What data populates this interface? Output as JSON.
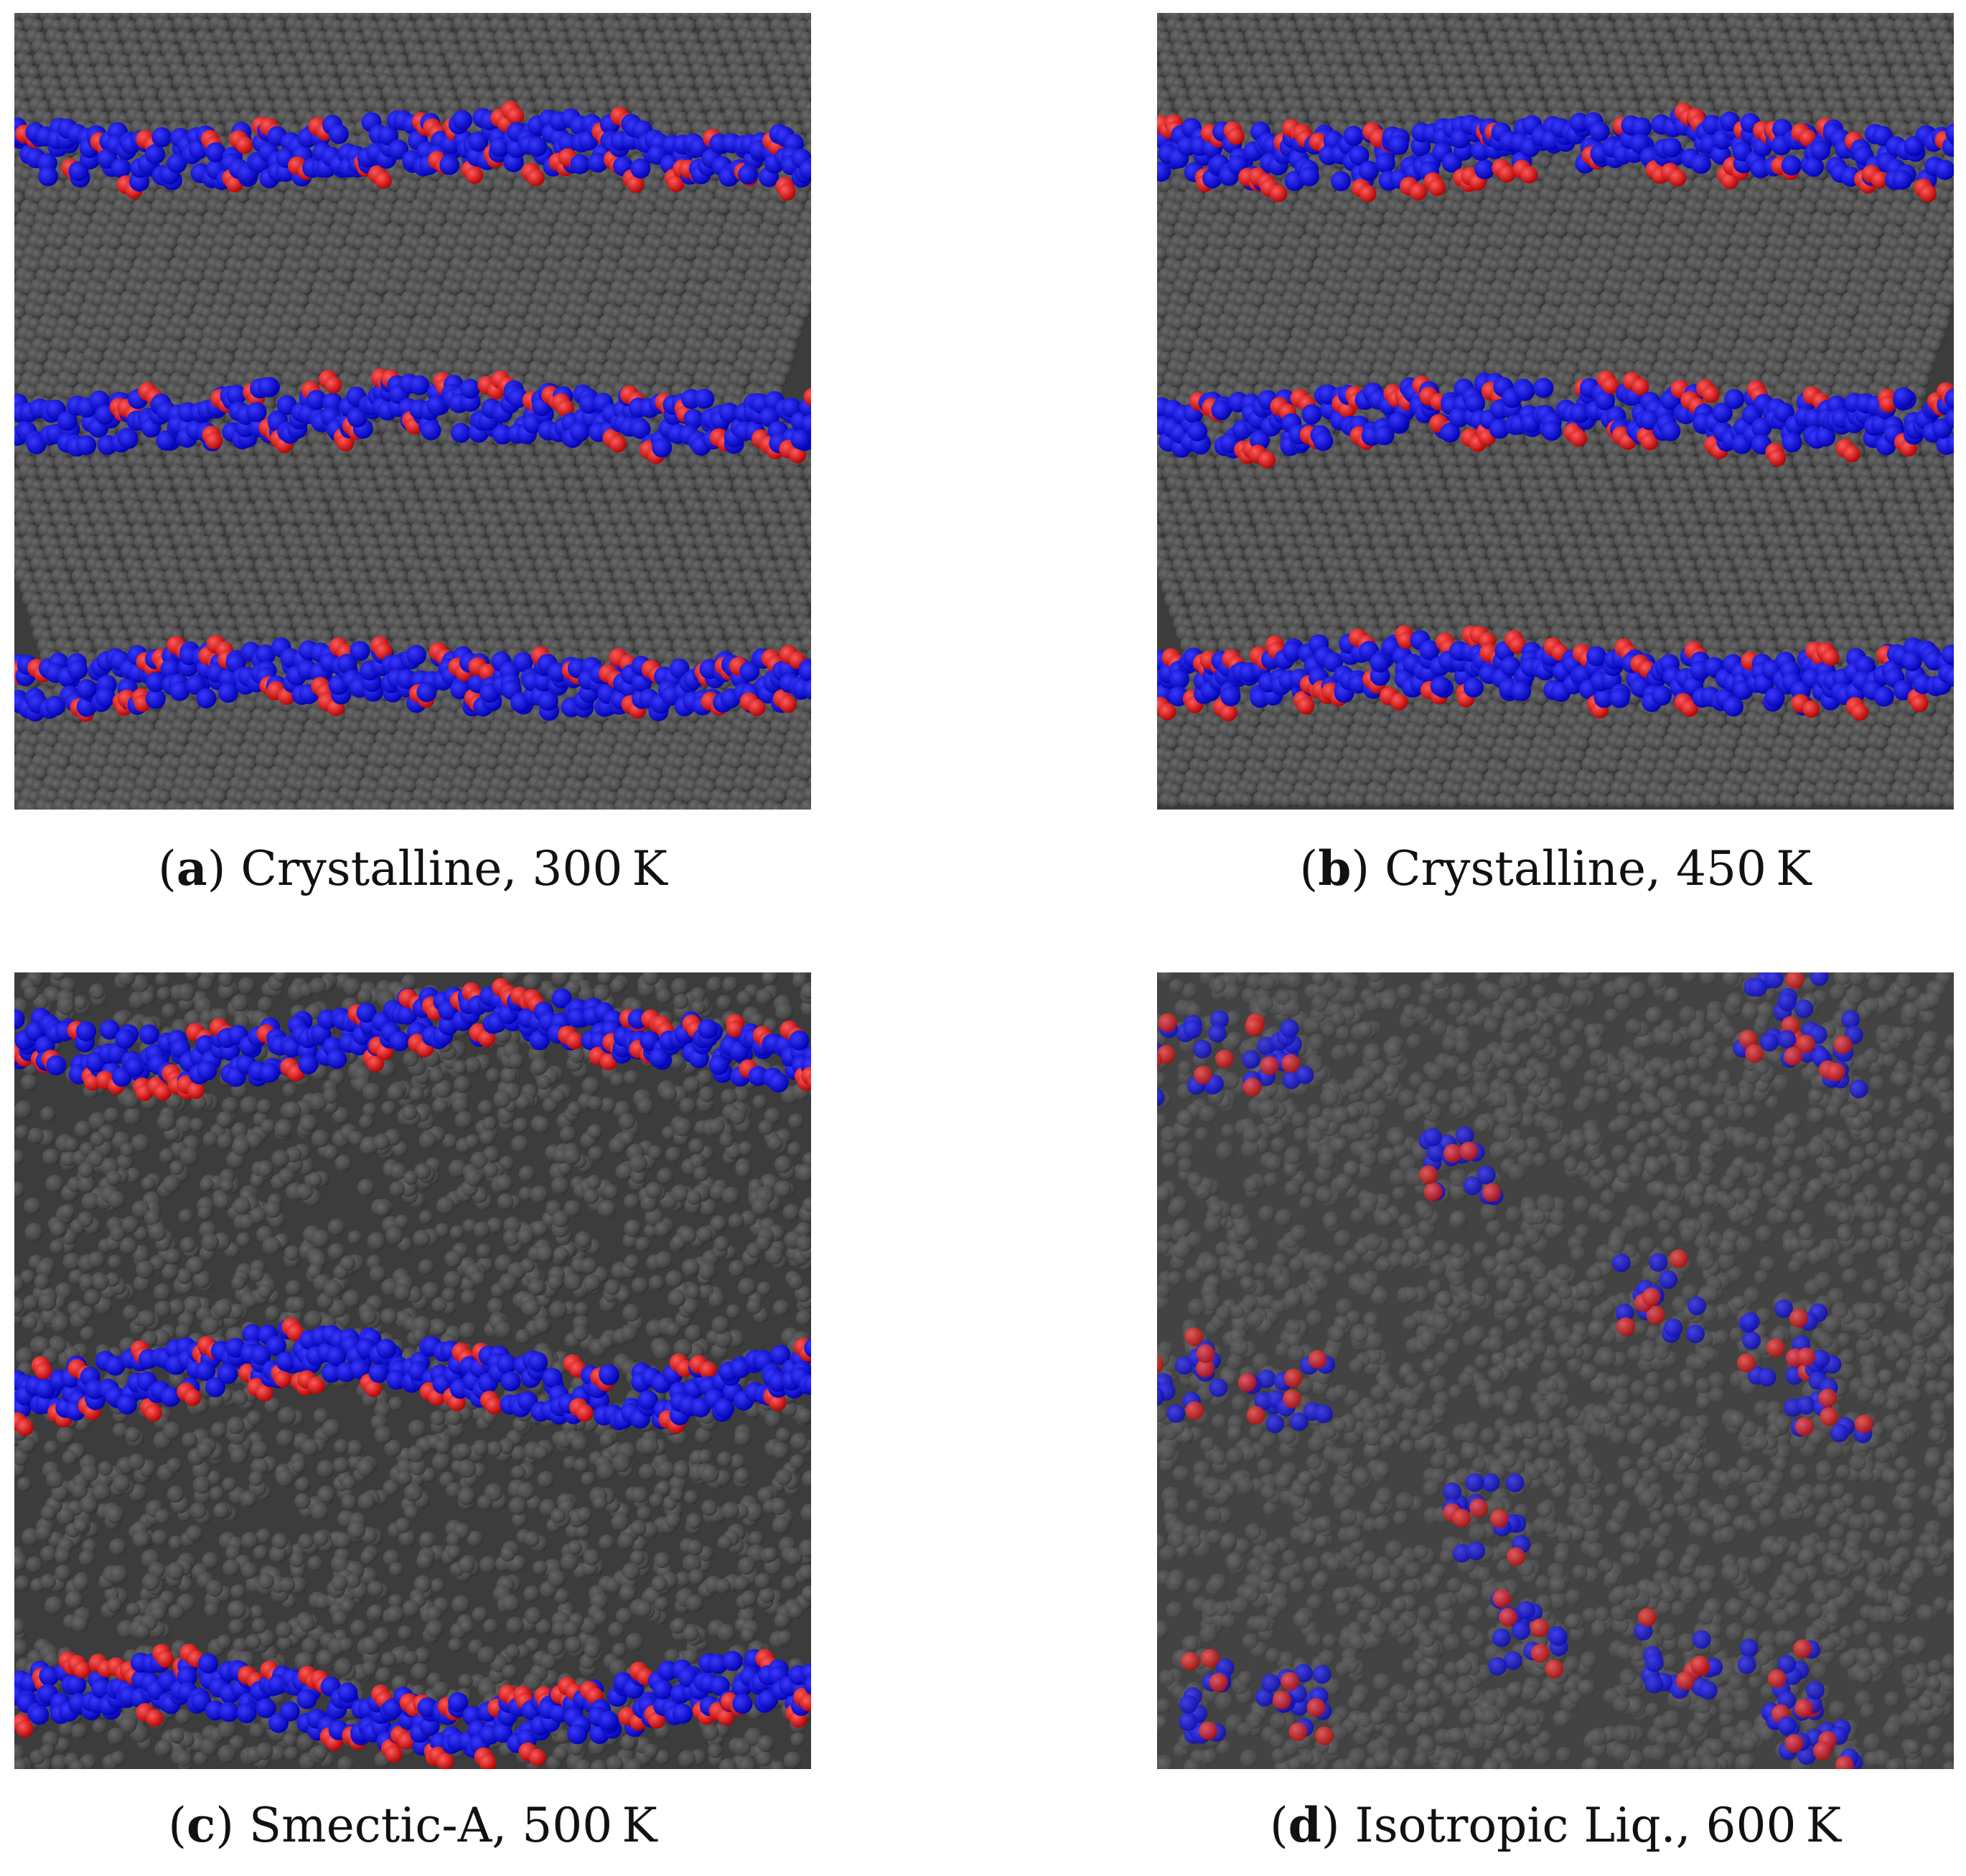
{
  "colors": {
    "carbon": "#4a4a4a",
    "carbon_dark": "#2e2e2e",
    "carbon_light": "#6a6a6a",
    "nitrogen": "#1010e0",
    "oxygen": "#ee1010"
  },
  "panels": [
    {
      "letter": "a",
      "text": "Crystalline, 300 K",
      "phase": "crystalline-ordered"
    },
    {
      "letter": "b",
      "text": "Crystalline, 450 K",
      "phase": "crystalline-ordered"
    },
    {
      "letter": "c",
      "text": "Smectic-A, 500 K",
      "phase": "smectic-layered"
    },
    {
      "letter": "d",
      "text": "Isotropic Liq., 600 K",
      "phase": "isotropic-disordered"
    }
  ]
}
